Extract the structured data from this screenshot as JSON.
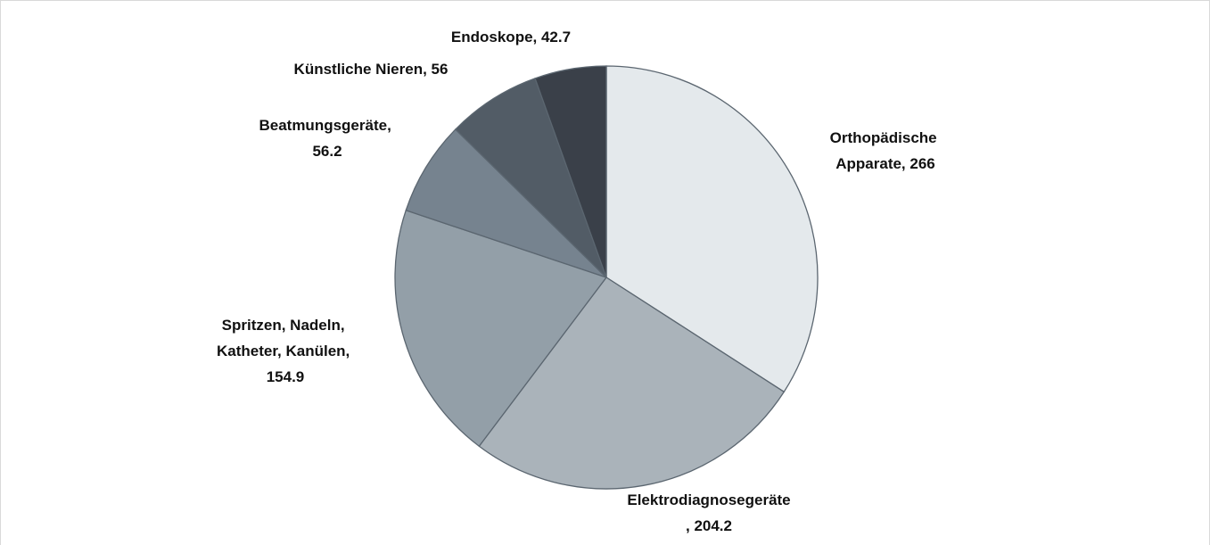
{
  "chart_data": {
    "type": "pie",
    "value_labels": [
      "Orthopädische Apparate, 266",
      "Elektrodiagnosegeräte, 204.2",
      "Spritzen, Nadeln, Katheter, Kanülen, 154.9",
      "Beatmungsgeräte, 56.2",
      "Künstliche Nieren, 56",
      "Endoskope, 42.7"
    ],
    "values": [
      266,
      204.2,
      154.9,
      56.2,
      56,
      42.7
    ],
    "colors": [
      "#e4e9ec",
      "#aab3ba",
      "#939fa8",
      "#76838f",
      "#525c66",
      "#3a4049"
    ]
  }
}
